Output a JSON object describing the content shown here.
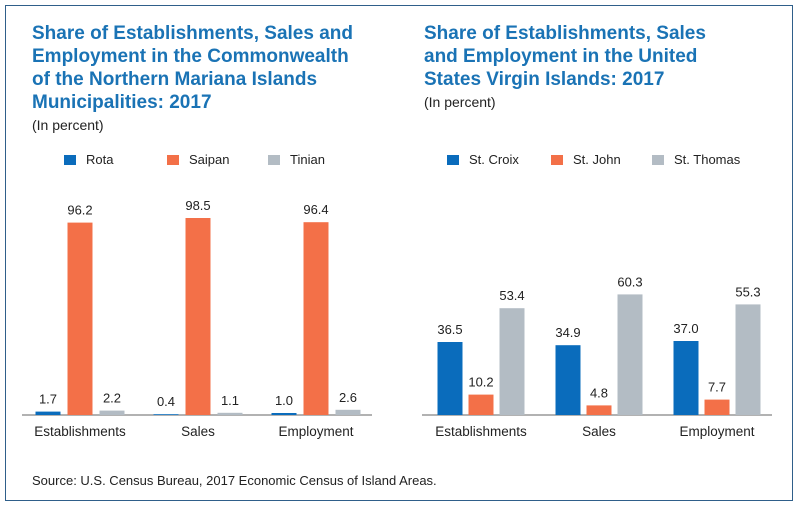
{
  "colors": {
    "title": "#1a73b5",
    "blue": "#0a6cbc",
    "orange": "#f37048",
    "gray": "#b3bcc4",
    "axis": "#444444"
  },
  "chart_data": [
    {
      "type": "bar",
      "title": "Share of Establishments, Sales and Employment in the Commonwealth of the Northern Mariana Islands Municipalities: 2017",
      "subtitle": "(In percent)",
      "categories": [
        "Establishments",
        "Sales",
        "Employment"
      ],
      "series": [
        {
          "name": "Rota",
          "color": "#0a6cbc",
          "values": [
            1.7,
            0.4,
            1.0
          ]
        },
        {
          "name": "Saipan",
          "color": "#f37048",
          "values": [
            96.2,
            98.5,
            96.4
          ]
        },
        {
          "name": "Tinian",
          "color": "#b3bcc4",
          "values": [
            2.2,
            1.1,
            2.6
          ]
        }
      ],
      "ylim": [
        0,
        100
      ],
      "value_labels": [
        "1.7",
        "0.4",
        "1.0",
        "96.2",
        "98.5",
        "96.4",
        "2.2",
        "1.1",
        "2.6"
      ],
      "legend": "top",
      "grid": false
    },
    {
      "type": "bar",
      "title": "Share of Establishments, Sales and Employment in the United States Virgin Islands: 2017",
      "subtitle": "(In percent)",
      "categories": [
        "Establishments",
        "Sales",
        "Employment"
      ],
      "series": [
        {
          "name": "St. Croix",
          "color": "#0a6cbc",
          "values": [
            36.5,
            34.9,
            37.0
          ]
        },
        {
          "name": "St. John",
          "color": "#f37048",
          "values": [
            10.2,
            4.8,
            7.7
          ]
        },
        {
          "name": "St. Thomas",
          "color": "#b3bcc4",
          "values": [
            53.4,
            60.3,
            55.3
          ]
        }
      ],
      "ylim": [
        0,
        100
      ],
      "value_labels": [
        "36.5",
        "34.9",
        "37.0",
        "10.2",
        "4.8",
        "7.7",
        "53.4",
        "60.3",
        "55.3"
      ],
      "legend": "top",
      "grid": false
    }
  ],
  "titles": {
    "p1_lines": [
      "Share of Establishments, Sales and",
      "Employment in the Commonwealth",
      "of the Northern Mariana Islands",
      "Municipalities: 2017"
    ],
    "p2_lines": [
      "Share of Establishments, Sales",
      "and Employment in the United",
      "States Virgin Islands: 2017"
    ]
  },
  "source": "Source: U.S. Census Bureau, 2017 Economic Census of Island Areas."
}
